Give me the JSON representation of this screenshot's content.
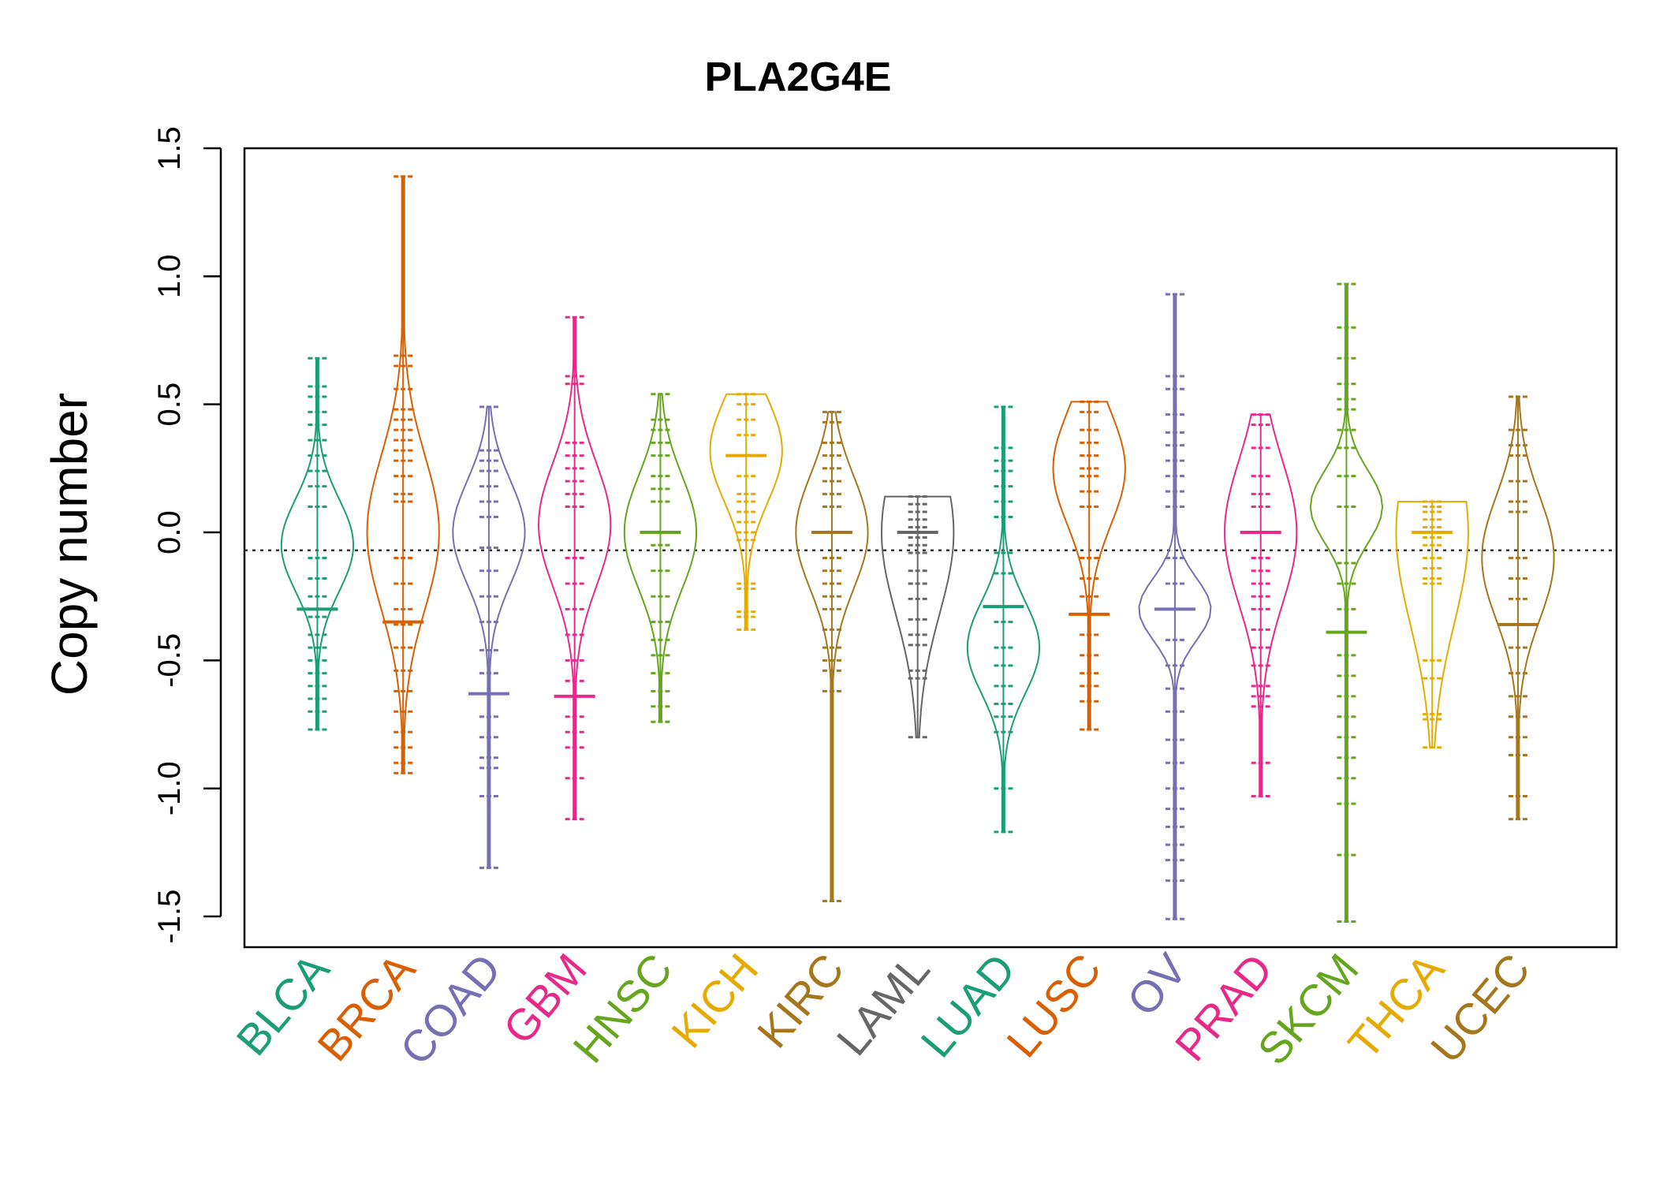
{
  "chart_data": {
    "type": "beanplot",
    "title": "PLA2G4E",
    "xlabel": "",
    "ylabel": "Copy number",
    "ylim": [
      -1.62,
      1.5
    ],
    "yticks": [
      "-1.5",
      "-1.0",
      "-0.5",
      "0.0",
      "0.5",
      "1.0",
      "1.5"
    ],
    "reference_line": -0.07,
    "grid": false,
    "legend": "none",
    "series": [
      {
        "name": "BLCA",
        "color": "#1b9e77",
        "median": -0.3,
        "min": -0.77,
        "max": 0.68,
        "density_mode": -0.05,
        "density_width": 0.18,
        "dashes": [
          0.68,
          0.57,
          0.53,
          0.47,
          0.42,
          0.36,
          0.3,
          0.24,
          0.18,
          0.1,
          -0.1,
          -0.18,
          -0.25,
          -0.33,
          -0.4,
          -0.45,
          -0.5,
          -0.55,
          -0.6,
          -0.65,
          -0.7,
          -0.77
        ]
      },
      {
        "name": "BRCA",
        "color": "#d95f02",
        "median": -0.35,
        "min": -0.94,
        "max": 1.39,
        "density_mode": 0.0,
        "density_width": 0.3,
        "dashes": [
          1.39,
          0.69,
          0.65,
          0.56,
          0.48,
          0.44,
          0.4,
          0.36,
          0.32,
          0.28,
          0.22,
          0.15,
          0.12,
          -0.1,
          -0.2,
          -0.3,
          -0.36,
          -0.45,
          -0.54,
          -0.62,
          -0.7,
          -0.78,
          -0.84,
          -0.9,
          -0.94
        ]
      },
      {
        "name": "COAD",
        "color": "#7570b3",
        "median": -0.63,
        "min": -1.31,
        "max": 0.49,
        "density_mode": 0.0,
        "density_width": 0.2,
        "dashes": [
          0.49,
          0.32,
          0.28,
          0.24,
          0.18,
          0.12,
          0.06,
          -0.06,
          -0.15,
          -0.25,
          -0.35,
          -0.46,
          -0.55,
          -0.63,
          -0.72,
          -0.8,
          -0.88,
          -0.92,
          -1.03,
          -1.31
        ]
      },
      {
        "name": "GBM",
        "color": "#e7298a",
        "median": -0.64,
        "min": -1.12,
        "max": 0.84,
        "density_mode": 0.03,
        "density_width": 0.24,
        "dashes": [
          0.84,
          0.61,
          0.58,
          0.35,
          0.3,
          0.25,
          0.2,
          0.15,
          0.1,
          -0.1,
          -0.2,
          -0.3,
          -0.4,
          -0.5,
          -0.58,
          -0.64,
          -0.72,
          -0.78,
          -0.84,
          -0.96,
          -1.12
        ]
      },
      {
        "name": "HNSC",
        "color": "#66a61e",
        "median": 0.0,
        "min": -0.74,
        "max": 0.54,
        "density_mode": 0.0,
        "density_width": 0.22,
        "dashes": [
          0.54,
          0.44,
          0.4,
          0.35,
          0.3,
          0.22,
          0.17,
          0.12,
          -0.05,
          -0.15,
          -0.25,
          -0.35,
          -0.42,
          -0.48,
          -0.55,
          -0.62,
          -0.68,
          -0.74
        ]
      },
      {
        "name": "KICH",
        "color": "#e6ab02",
        "median": 0.3,
        "min": -0.38,
        "max": 0.54,
        "density_mode": 0.32,
        "density_width": 0.2,
        "dashes": [
          0.54,
          0.5,
          0.44,
          0.38,
          0.3,
          0.22,
          0.15,
          0.12,
          0.08,
          0.04,
          0.0,
          -0.03,
          -0.2,
          -0.22,
          -0.31,
          -0.33,
          -0.38
        ]
      },
      {
        "name": "KIRC",
        "color": "#a6761d",
        "median": 0.0,
        "min": -1.44,
        "max": 0.47,
        "density_mode": 0.0,
        "density_width": 0.22,
        "dashes": [
          0.47,
          0.43,
          0.35,
          0.3,
          0.25,
          0.2,
          0.15,
          0.1,
          -0.1,
          -0.15,
          -0.2,
          -0.25,
          -0.3,
          -0.38,
          -0.45,
          -0.5,
          -0.54,
          -0.62,
          -1.44
        ]
      },
      {
        "name": "LAML",
        "color": "#666666",
        "median": 0.0,
        "min": -0.8,
        "max": 0.14,
        "density_mode": 0.0,
        "density_width": 0.32,
        "dashes": [
          0.14,
          0.11,
          0.08,
          0.05,
          0.02,
          -0.02,
          -0.05,
          -0.08,
          -0.15,
          -0.2,
          -0.26,
          -0.34,
          -0.4,
          -0.44,
          -0.54,
          -0.57,
          -0.8
        ]
      },
      {
        "name": "LUAD",
        "color": "#1b9e77",
        "median": -0.29,
        "min": -1.17,
        "max": 0.49,
        "density_mode": -0.45,
        "density_width": 0.18,
        "dashes": [
          0.49,
          0.33,
          0.28,
          0.24,
          0.18,
          0.12,
          0.06,
          -0.08,
          -0.16,
          -0.29,
          -0.35,
          -0.45,
          -0.52,
          -0.6,
          -0.67,
          -0.72,
          -0.78,
          -1.0,
          -1.17
        ]
      },
      {
        "name": "LUSC",
        "color": "#d95f02",
        "median": -0.32,
        "min": -0.77,
        "max": 0.51,
        "density_mode": 0.25,
        "density_width": 0.22,
        "dashes": [
          0.51,
          0.47,
          0.4,
          0.35,
          0.3,
          0.25,
          0.22,
          0.16,
          0.1,
          -0.1,
          -0.18,
          -0.25,
          -0.32,
          -0.4,
          -0.48,
          -0.55,
          -0.6,
          -0.66,
          -0.77
        ]
      },
      {
        "name": "OV",
        "color": "#7570b3",
        "median": -0.3,
        "min": -1.51,
        "max": 0.93,
        "density_mode": -0.3,
        "density_width": 0.12,
        "dashes": [
          0.93,
          0.61,
          0.56,
          0.46,
          0.39,
          0.34,
          0.28,
          0.22,
          0.16,
          0.1,
          -0.1,
          -0.2,
          -0.3,
          -0.42,
          -0.52,
          -0.61,
          -0.7,
          -0.81,
          -0.9,
          -1.0,
          -1.08,
          -1.15,
          -1.22,
          -1.28,
          -1.36,
          -1.51
        ]
      },
      {
        "name": "PRAD",
        "color": "#e7298a",
        "median": 0.0,
        "min": -1.03,
        "max": 0.46,
        "density_mode": 0.0,
        "density_width": 0.28,
        "dashes": [
          0.46,
          0.42,
          0.33,
          0.22,
          0.15,
          0.1,
          -0.1,
          -0.15,
          -0.2,
          -0.25,
          -0.3,
          -0.38,
          -0.45,
          -0.52,
          -0.6,
          -0.64,
          -0.68,
          -0.9,
          -1.03
        ]
      },
      {
        "name": "SKCM",
        "color": "#66a61e",
        "median": -0.39,
        "min": -1.52,
        "max": 0.97,
        "density_mode": 0.1,
        "density_width": 0.14,
        "dashes": [
          0.97,
          0.8,
          0.68,
          0.58,
          0.52,
          0.48,
          0.4,
          0.33,
          0.22,
          0.1,
          -0.12,
          -0.2,
          -0.3,
          -0.39,
          -0.48,
          -0.56,
          -0.64,
          -0.72,
          -0.8,
          -0.88,
          -0.96,
          -1.06,
          -1.26,
          -1.52
        ]
      },
      {
        "name": "THCA",
        "color": "#e6ab02",
        "median": 0.0,
        "min": -0.84,
        "max": 0.12,
        "density_mode": 0.0,
        "density_width": 0.36,
        "dashes": [
          0.12,
          0.1,
          0.08,
          0.05,
          0.02,
          -0.02,
          -0.05,
          -0.1,
          -0.14,
          -0.18,
          -0.2,
          -0.5,
          -0.57,
          -0.71,
          -0.73,
          -0.84
        ]
      },
      {
        "name": "UCEC",
        "color": "#a6761d",
        "median": -0.36,
        "min": -1.12,
        "max": 0.53,
        "density_mode": -0.1,
        "density_width": 0.24,
        "dashes": [
          0.53,
          0.4,
          0.34,
          0.3,
          0.2,
          0.12,
          0.08,
          -0.1,
          -0.18,
          -0.26,
          -0.36,
          -0.45,
          -0.55,
          -0.64,
          -0.72,
          -0.8,
          -0.87,
          -1.03,
          -1.12
        ]
      }
    ]
  }
}
